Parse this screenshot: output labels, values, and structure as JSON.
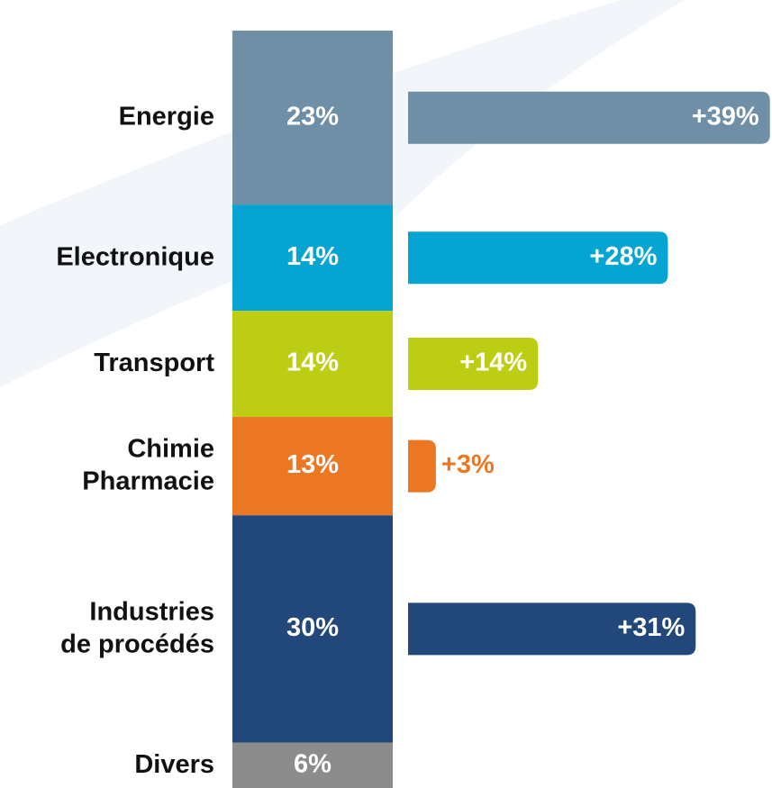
{
  "chart_data": {
    "type": "bar",
    "categories": [
      [
        "Energie"
      ],
      [
        "Electronique"
      ],
      [
        "Transport"
      ],
      [
        "Chimie",
        "Pharmacie"
      ],
      [
        "Industries",
        "de procédés"
      ],
      [
        "Divers"
      ]
    ],
    "colors": [
      "#6e8fa6",
      "#05a4d3",
      "#bccd14",
      "#ec7723",
      "#22477a",
      "#8c8c8c"
    ],
    "share_values": [
      23,
      14,
      14,
      13,
      30,
      6
    ],
    "share_labels": [
      "23%",
      "14%",
      "14%",
      "13%",
      "30%",
      "6%"
    ],
    "growth_values": [
      39,
      28,
      14,
      3,
      31,
      null
    ],
    "growth_labels": [
      "+39%",
      "+28%",
      "+14%",
      "+3%",
      "+31%",
      null
    ]
  }
}
